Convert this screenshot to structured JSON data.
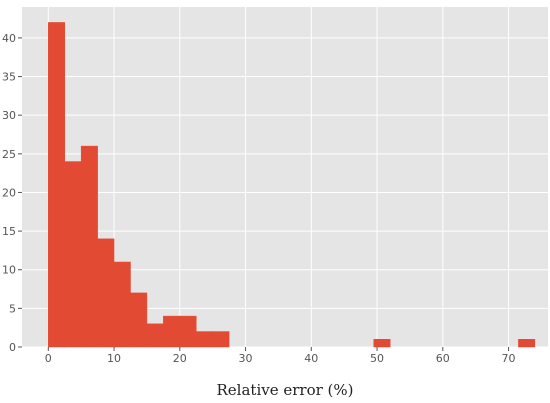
{
  "chart_data": {
    "type": "bar",
    "chart_subtype": "histogram",
    "title": "",
    "xlabel": "Relative error (%)",
    "ylabel": "",
    "xlim": [
      -4,
      76
    ],
    "ylim": [
      0,
      44
    ],
    "x_ticks": [
      0,
      10,
      20,
      30,
      40,
      50,
      60,
      70
    ],
    "y_ticks": [
      0,
      5,
      10,
      15,
      20,
      25,
      30,
      35,
      40
    ],
    "grid": true,
    "bar_color": "#e24a33",
    "background_color": "#e5e5e5",
    "bins": [
      {
        "x0": 0.0,
        "x1": 2.5,
        "count": 42
      },
      {
        "x0": 2.5,
        "x1": 5.0,
        "count": 24
      },
      {
        "x0": 5.0,
        "x1": 7.5,
        "count": 26
      },
      {
        "x0": 7.5,
        "x1": 10.0,
        "count": 14
      },
      {
        "x0": 10.0,
        "x1": 12.5,
        "count": 11
      },
      {
        "x0": 12.5,
        "x1": 15.0,
        "count": 7
      },
      {
        "x0": 15.0,
        "x1": 17.5,
        "count": 3
      },
      {
        "x0": 17.5,
        "x1": 20.0,
        "count": 4
      },
      {
        "x0": 20.0,
        "x1": 22.5,
        "count": 4
      },
      {
        "x0": 22.5,
        "x1": 25.0,
        "count": 2
      },
      {
        "x0": 25.0,
        "x1": 27.5,
        "count": 2
      },
      {
        "x0": 49.5,
        "x1": 52.0,
        "count": 1
      },
      {
        "x0": 71.5,
        "x1": 74.0,
        "count": 1
      }
    ]
  }
}
